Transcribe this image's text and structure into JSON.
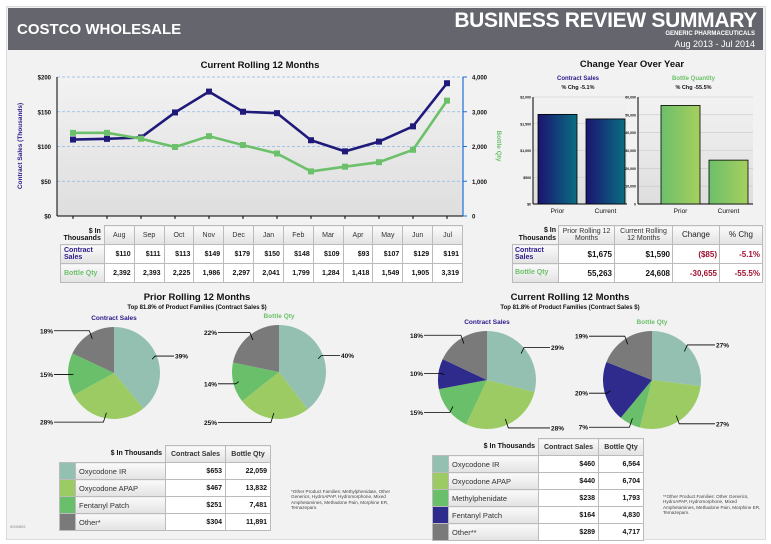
{
  "header": {
    "company": "COSTCO WHOLESALE",
    "title": "BUSINESS REVIEW SUMMARY",
    "subtitle": "GENERIC PHARMACEUTICALS",
    "period": "Aug 2013 - Jul 2014"
  },
  "rolling": {
    "corner": "$ In Thousands",
    "months": [
      "Aug",
      "Sep",
      "Oct",
      "Nov",
      "Dec",
      "Jan",
      "Feb",
      "Mar",
      "Apr",
      "May",
      "Jun",
      "Jul"
    ],
    "contract_label": "Contract Sales",
    "contract": [
      "$110",
      "$111",
      "$113",
      "$149",
      "$179",
      "$150",
      "$148",
      "$109",
      "$93",
      "$107",
      "$129",
      "$191"
    ],
    "bottle_label": "Bottle Qty",
    "bottle": [
      "2,392",
      "2,393",
      "2,225",
      "1,986",
      "2,297",
      "2,041",
      "1,799",
      "1,284",
      "1,418",
      "1,549",
      "1,905",
      "3,319"
    ]
  },
  "yoy": {
    "title": "Change Year Over Year",
    "corner": "$ In Thousands",
    "cols": [
      "Prior Rolling 12 Months",
      "Current Rolling 12 Months",
      "Change",
      "% Chg"
    ],
    "rows": [
      {
        "label": "Contract Sales",
        "cells": [
          "$1,675",
          "$1,590",
          "($85)",
          "-5.1%"
        ]
      },
      {
        "label": "Bottle Qty",
        "cells": [
          "55,263",
          "24,608",
          "-30,655",
          "-55.5%"
        ]
      }
    ]
  },
  "prior": {
    "title": "Prior Rolling 12 Months",
    "subtitle": "Top 81.8% of Product Families (Contract Sales $)",
    "corner": "$ In Thousands",
    "col1": "Contract Sales",
    "col2": "Bottle Qty",
    "rows": [
      {
        "name": "Oxycodone IR",
        "cs": "$653",
        "bq": "22,059",
        "color": "#93c0b0"
      },
      {
        "name": "Oxycodone APAP",
        "cs": "$467",
        "bq": "13,832",
        "color": "#9ccb64"
      },
      {
        "name": "Fentanyl Patch",
        "cs": "$251",
        "bq": "7,481",
        "color": "#6abf6a"
      },
      {
        "name": "Other*",
        "cs": "$304",
        "bq": "11,891",
        "color": "#7a7a7a"
      }
    ],
    "note": "*Other Product Families: Methylphenidate, Other Generics, HydroAPAP, Hydromorphone, Mixed Amphetamines, Methadone Pain, Morphine ER, Temazepam."
  },
  "current": {
    "title": "Current Rolling 12 Months",
    "subtitle": "Top 81.8% of Product Families (Contract Sales $)",
    "corner": "$ In Thousands",
    "col1": "Contract Sales",
    "col2": "Bottle Qty",
    "rows": [
      {
        "name": "Oxycodone IR",
        "cs": "$460",
        "bq": "6,564",
        "color": "#93c0b0"
      },
      {
        "name": "Oxycodone APAP",
        "cs": "$440",
        "bq": "6,704",
        "color": "#9ccb64"
      },
      {
        "name": "Methylphenidate",
        "cs": "$238",
        "bq": "1,793",
        "color": "#6abf6a"
      },
      {
        "name": "Fentanyl Patch",
        "cs": "$164",
        "bq": "4,830",
        "color": "#2f2b8c"
      },
      {
        "name": "Other**",
        "cs": "$289",
        "bq": "4,717",
        "color": "#7a7a7a"
      }
    ],
    "note": "**Other Product Families: Other Generics, HydroAPAP, Hydromorphone, Mixed Amphetamines, Methadone Pain, Morphine ER, Temazepam."
  },
  "footer_code": "0000892",
  "chart_data": [
    {
      "type": "line",
      "title": "Current Rolling 12 Months",
      "ylabel": "Contract Sales (Thousands)",
      "y2label": "Bottle Qty",
      "categories": [
        "Aug",
        "Sep",
        "Oct",
        "Nov",
        "Dec",
        "Jan",
        "Feb",
        "Mar",
        "Apr",
        "May",
        "Jun",
        "Jul"
      ],
      "ylim": [
        0,
        200
      ],
      "y2lim": [
        0,
        4000
      ],
      "yticks": [
        "$0",
        "$50",
        "$100",
        "$150",
        "$200"
      ],
      "y2ticks": [
        "0",
        "1,000",
        "2,000",
        "3,000",
        "4,000"
      ],
      "series": [
        {
          "name": "Contract Sales",
          "axis": "left",
          "color": "#1f1a7a",
          "values": [
            110,
            111,
            113,
            149,
            179,
            150,
            148,
            109,
            93,
            107,
            129,
            191
          ]
        },
        {
          "name": "Bottle Qty",
          "axis": "right",
          "color": "#6cc06a",
          "values": [
            2392,
            2393,
            2225,
            1986,
            2297,
            2041,
            1799,
            1284,
            1418,
            1549,
            1905,
            3319
          ]
        }
      ],
      "grid": true
    },
    {
      "type": "bar",
      "title": "Contract Sales",
      "subtitle": "% Chg -5.1%",
      "categories": [
        "Prior",
        "Current"
      ],
      "values": [
        1675,
        1590
      ],
      "ylim": [
        0,
        2000
      ],
      "yticks": [
        "$0",
        "$500",
        "$1,000",
        "$1,500",
        "$2,000"
      ],
      "colors": [
        "#1a1470",
        "#0a6e82"
      ]
    },
    {
      "type": "bar",
      "title": "Bottle Quantity",
      "subtitle": "% Chg -55.5%",
      "categories": [
        "Prior",
        "Current"
      ],
      "values": [
        55263,
        24608
      ],
      "ylim": [
        0,
        60000
      ],
      "yticks": [
        "0",
        "10,000",
        "20,000",
        "30,000",
        "40,000",
        "50,000",
        "60,000"
      ],
      "colors": [
        "#6cbf6a",
        "#a6cf5e"
      ]
    },
    {
      "type": "pie",
      "title": "Contract Sales",
      "group": "Prior",
      "labels": [
        "39%",
        "28%",
        "15%",
        "18%"
      ],
      "values": [
        39,
        28,
        15,
        18
      ],
      "colors": [
        "#93c0b0",
        "#9ccb64",
        "#6abf6a",
        "#7a7a7a"
      ]
    },
    {
      "type": "pie",
      "title": "Bottle Qty",
      "group": "Prior",
      "labels": [
        "40%",
        "25%",
        "14%",
        "22%"
      ],
      "values": [
        40,
        25,
        14,
        22
      ],
      "colors": [
        "#93c0b0",
        "#9ccb64",
        "#6abf6a",
        "#7a7a7a"
      ]
    },
    {
      "type": "pie",
      "title": "Contract Sales",
      "group": "Current",
      "labels": [
        "29%",
        "28%",
        "15%",
        "10%",
        "18%"
      ],
      "values": [
        29,
        28,
        15,
        10,
        18
      ],
      "colors": [
        "#93c0b0",
        "#9ccb64",
        "#6abf6a",
        "#2f2b8c",
        "#7a7a7a"
      ]
    },
    {
      "type": "pie",
      "title": "Bottle Qty",
      "group": "Current",
      "labels": [
        "27%",
        "27%",
        "7%",
        "20%",
        "19%"
      ],
      "values": [
        27,
        27,
        7,
        20,
        19
      ],
      "colors": [
        "#93c0b0",
        "#9ccb64",
        "#6abf6a",
        "#2f2b8c",
        "#7a7a7a"
      ]
    }
  ]
}
